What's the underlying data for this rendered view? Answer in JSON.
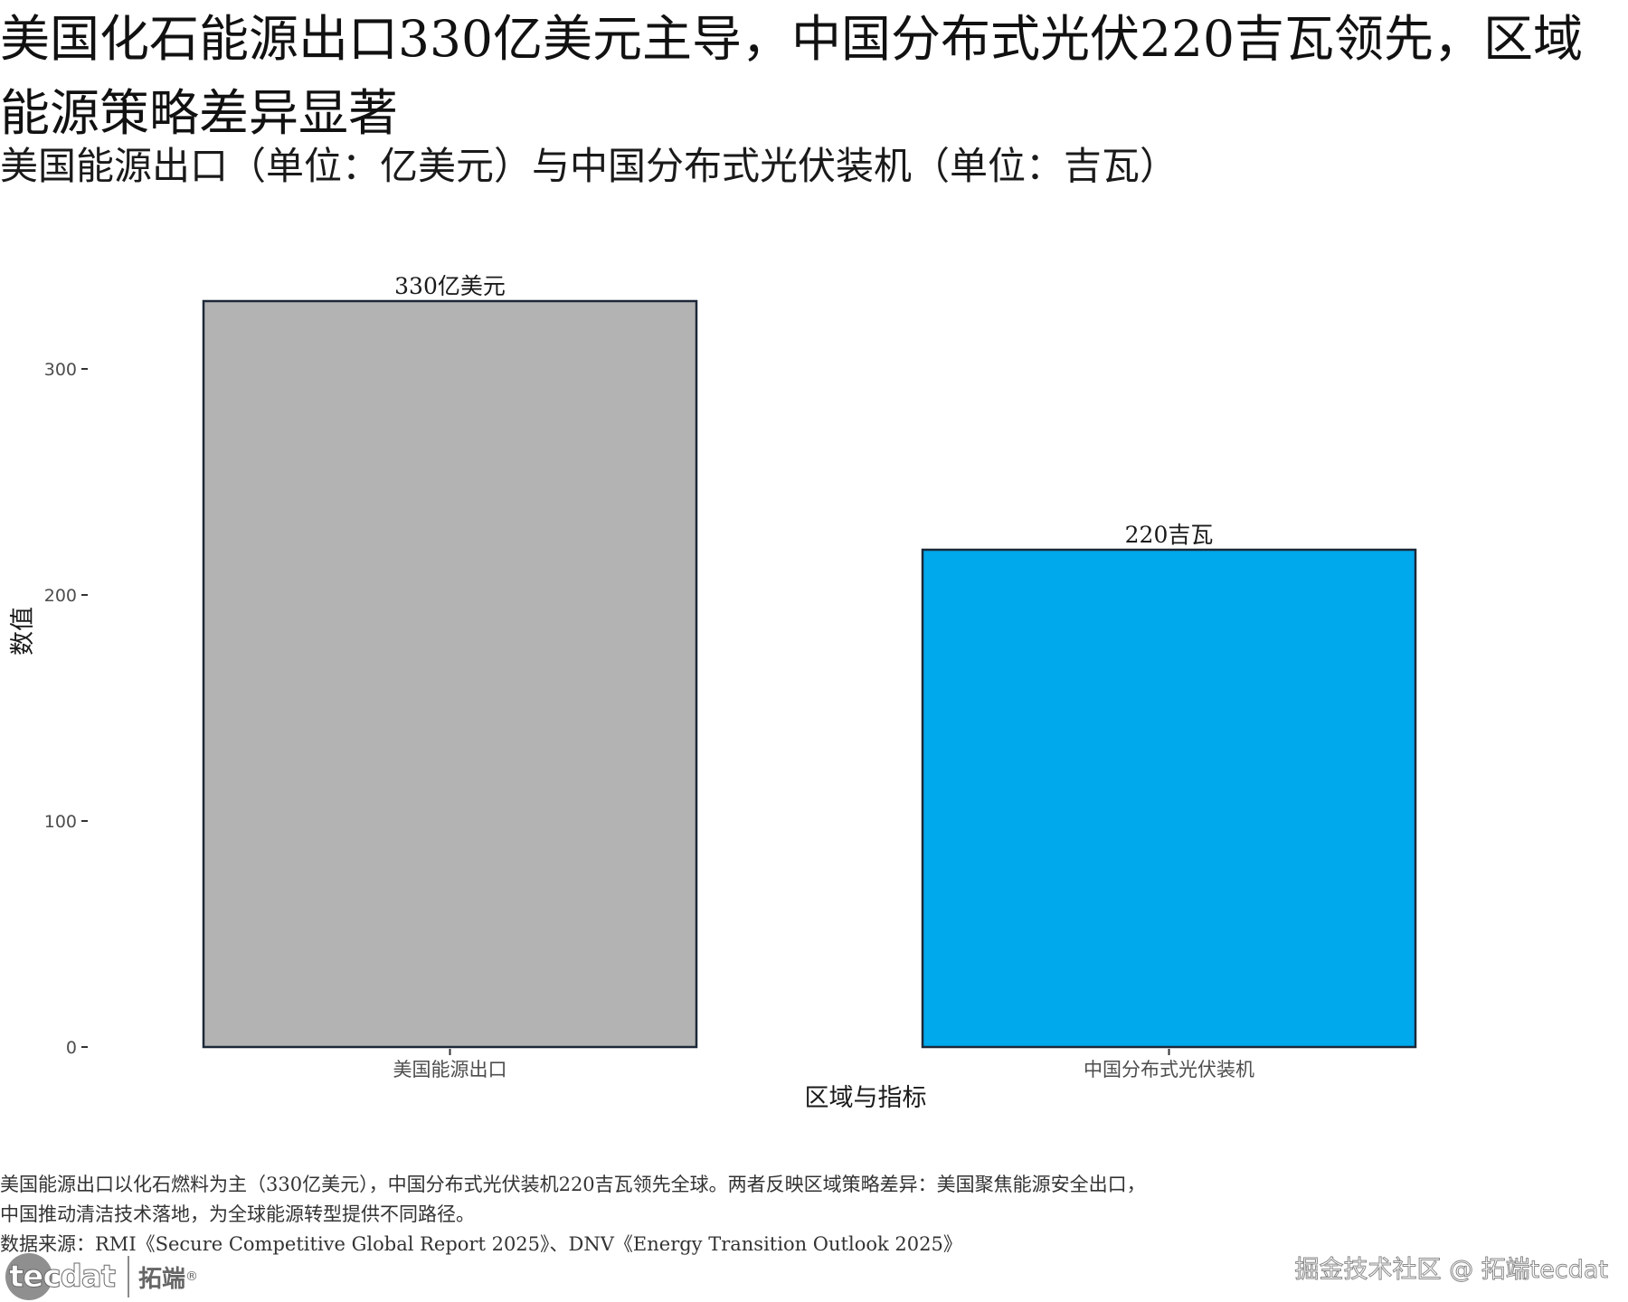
{
  "title": "美国化石能源出口330亿美元主导，中国分布式光伏220吉瓦领先，区域能源策略差异显著",
  "subtitle": "美国能源出口（单位：亿美元）与中国分布式光伏装机（单位：吉瓦）",
  "chart_data": {
    "type": "bar",
    "categories": [
      "美国能源出口",
      "中国分布式光伏装机"
    ],
    "values": [
      330,
      220
    ],
    "data_labels": [
      "330亿美元",
      "220吉瓦"
    ],
    "colors": [
      "#b3b3b3",
      "#00a8ec"
    ],
    "bar_outline": "#1c2838",
    "xlabel": "区域与指标",
    "ylabel": "数值",
    "yticks": [
      0,
      100,
      200,
      300
    ],
    "ylim": [
      0,
      330
    ],
    "grid": false,
    "legend": "none"
  },
  "caption": {
    "line1": "美国能源出口以化石燃料为主（330亿美元），中国分布式光伏装机220吉瓦领先全球。两者反映区域策略差异：美国聚焦能源安全出口，",
    "line2": "中国推动清洁技术落地，为全球能源转型提供不同路径。",
    "source": "数据来源：RMI《Secure Competitive Global Report 2025》、DNV《Energy Transition Outlook 2025》"
  },
  "logo": {
    "brand": "tecdat",
    "cn_name": "拓端",
    "registered": "®"
  },
  "watermark": "掘金技术社区 @ 拓端tecdat"
}
